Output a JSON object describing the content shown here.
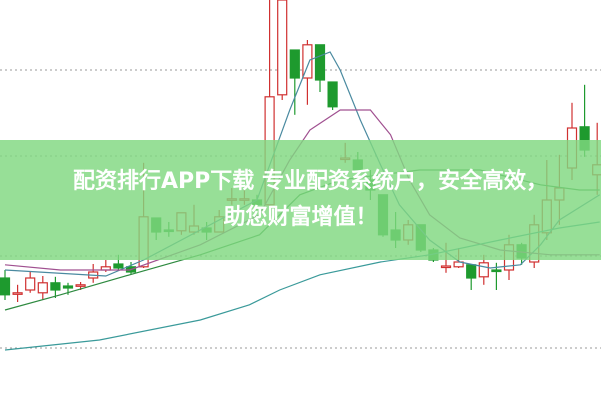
{
  "banner": {
    "line1": "配资排行APP下载 专业配资系统户，安全高效，",
    "line2": "助您财富增值！"
  },
  "colors": {
    "up": "#d03030",
    "down": "#1e9a2e",
    "banner": "#80d880",
    "grid": "#999999"
  },
  "chart_data": {
    "type": "candlestick",
    "title": "",
    "xlabel": "",
    "ylabel": "",
    "ylim": [
      0,
      100
    ],
    "grid": true,
    "gridlines": [
      13,
      36,
      61,
      82.5
    ],
    "candles": [
      [
        30.5,
        32.5,
        25,
        26.3
      ],
      [
        26.5,
        28.8,
        24.5,
        26.8
      ],
      [
        27.5,
        32,
        26.8,
        30.5
      ],
      [
        26.8,
        31,
        25,
        29.3
      ],
      [
        29.3,
        30.8,
        25.5,
        27.5
      ],
      [
        28.5,
        29.3,
        26.3,
        28
      ],
      [
        28.5,
        29.5,
        27.5,
        28.8
      ],
      [
        30.5,
        34,
        29.3,
        32
      ],
      [
        32.5,
        35,
        32,
        33.3
      ],
      [
        34,
        36.3,
        32.5,
        33
      ],
      [
        33.3,
        34.5,
        31.3,
        32
      ],
      [
        33.3,
        59.3,
        33,
        45.8
      ],
      [
        45.5,
        45.5,
        40,
        42
      ],
      [
        42.5,
        44.5,
        40.8,
        42.3
      ],
      [
        42.3,
        46.8,
        41.3,
        46.8
      ],
      [
        42,
        48.8,
        41.3,
        43.5
      ],
      [
        43,
        44.5,
        40,
        42
      ],
      [
        42,
        47.5,
        42,
        45.8
      ],
      [
        50,
        53,
        48.8,
        50.3
      ],
      [
        50,
        52.5,
        48.8,
        50.3
      ],
      [
        50,
        51.3,
        47.5,
        48.8
      ],
      [
        48.8,
        100,
        48.3,
        75.8
      ],
      [
        76.3,
        100,
        75,
        100
      ],
      [
        87.5,
        87.5,
        71.3,
        80.5
      ],
      [
        80.5,
        90,
        73.8,
        88.8
      ],
      [
        88.8,
        88.8,
        77,
        80
      ],
      [
        79.5,
        79.5,
        72.5,
        73.3
      ],
      [
        60.3,
        64.3,
        59.3,
        60.5
      ],
      [
        60,
        62,
        56.3,
        57.5
      ],
      [
        55,
        57.5,
        50,
        52.5
      ],
      [
        51.3,
        51.3,
        40.8,
        41.3
      ],
      [
        42.5,
        47,
        38,
        40
      ],
      [
        40,
        45,
        38.8,
        43.8
      ],
      [
        43.8,
        43.8,
        37,
        37.5
      ],
      [
        37.5,
        38,
        34.5,
        35
      ],
      [
        33.3,
        39.3,
        31.8,
        33.5
      ],
      [
        33.3,
        38,
        33,
        34.5
      ],
      [
        33.8,
        33.8,
        27.5,
        30.5
      ],
      [
        30.8,
        36.3,
        28.8,
        34.3
      ],
      [
        32.5,
        34.3,
        27.5,
        32.3
      ],
      [
        32.5,
        41.3,
        30,
        38.8
      ],
      [
        38.8,
        39.3,
        33.8,
        35.5
      ],
      [
        34.5,
        46.3,
        33,
        43.8
      ],
      [
        41.8,
        60,
        40,
        50
      ],
      [
        50,
        61.3,
        43.8,
        53
      ],
      [
        58,
        74.3,
        55,
        68
      ],
      [
        68.3,
        78.8,
        60.8,
        62.5
      ],
      [
        56.3,
        69.3,
        51.3,
        58.8
      ]
    ],
    "candle_fields": [
      "open",
      "high",
      "low",
      "close"
    ],
    "moving_averages": [
      {
        "color": "#4a8aa0",
        "points": [
          [
            0,
            32.5
          ],
          [
            8,
            31
          ],
          [
            11,
            35
          ],
          [
            20,
            50
          ],
          [
            22.6,
            72.5
          ],
          [
            24.2,
            85
          ],
          [
            25.8,
            87
          ],
          [
            26.6,
            82.5
          ],
          [
            28.2,
            70
          ],
          [
            29.8,
            58.8
          ],
          [
            31.3,
            48.8
          ],
          [
            33.7,
            40
          ],
          [
            36.1,
            34.5
          ],
          [
            38.5,
            33
          ],
          [
            40.9,
            33.8
          ],
          [
            42.5,
            38.8
          ],
          [
            44,
            45
          ],
          [
            47.2,
            51.3
          ]
        ]
      },
      {
        "color": "#a05090",
        "points": [
          [
            0,
            33.8
          ],
          [
            4.4,
            32.5
          ],
          [
            9.9,
            32.5
          ],
          [
            15.5,
            38.8
          ],
          [
            20.2,
            46.3
          ],
          [
            22.6,
            60
          ],
          [
            24.2,
            67.5
          ],
          [
            26.6,
            72.5
          ],
          [
            29,
            72.5
          ],
          [
            30.6,
            66.3
          ],
          [
            32.1,
            55
          ],
          [
            33.7,
            46.3
          ],
          [
            36.1,
            40.5
          ],
          [
            39.3,
            37.5
          ],
          [
            43.3,
            36.3
          ],
          [
            47.2,
            36.3
          ]
        ]
      },
      {
        "color": "#2e8a40",
        "points": [
          [
            0,
            22.5
          ],
          [
            4.4,
            26.3
          ],
          [
            9.9,
            31.3
          ],
          [
            15.5,
            36.3
          ],
          [
            20.2,
            41.3
          ],
          [
            23.4,
            51.3
          ],
          [
            26.6,
            55
          ],
          [
            29.8,
            56.3
          ],
          [
            32.9,
            57.5
          ],
          [
            37.7,
            57.5
          ],
          [
            42.5,
            53.8
          ],
          [
            45.6,
            52.5
          ],
          [
            47.2,
            52.5
          ]
        ]
      },
      {
        "color": "#3a9a9a",
        "points": [
          [
            0,
            12.5
          ],
          [
            7.5,
            15
          ],
          [
            15.5,
            20
          ],
          [
            19.4,
            23.8
          ],
          [
            21.8,
            27.5
          ],
          [
            25,
            31.3
          ],
          [
            29.8,
            34.5
          ],
          [
            33.7,
            36.3
          ],
          [
            39.3,
            40
          ],
          [
            44,
            43
          ],
          [
            47.2,
            44.5
          ]
        ]
      }
    ]
  }
}
